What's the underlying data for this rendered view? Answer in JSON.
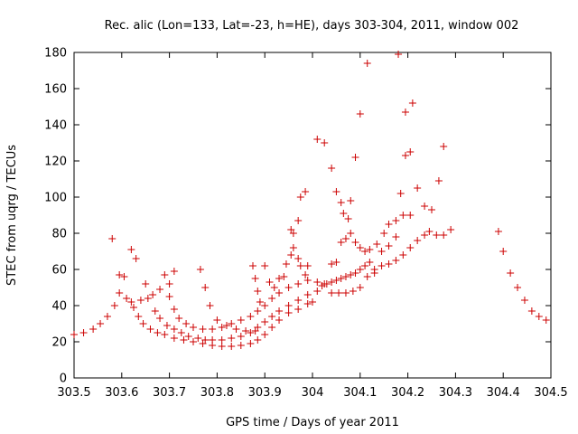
{
  "chart_data": {
    "type": "scatter",
    "title": "Rec. alic (Lon=133, Lat=-23, h=HE), days 303-304, 2011, window 002",
    "xlabel": "GPS time / Days of year 2011",
    "ylabel": "STEC from uqrg / TECUs",
    "xlim": [
      303.5,
      304.5
    ],
    "ylim": [
      0,
      180
    ],
    "xticks": [
      "303.5",
      "303.6",
      "303.7",
      "303.8",
      "303.9",
      "304",
      "304.1",
      "304.2",
      "304.3",
      "304.4",
      "304.5"
    ],
    "yticks": [
      "0",
      "20",
      "40",
      "60",
      "80",
      "100",
      "120",
      "140",
      "160",
      "180"
    ],
    "grid": false,
    "marker": "+",
    "color": "#cc0000",
    "points": [
      [
        303.5,
        24
      ],
      [
        303.52,
        25
      ],
      [
        303.54,
        27
      ],
      [
        303.555,
        30
      ],
      [
        303.57,
        34
      ],
      [
        303.585,
        40
      ],
      [
        303.58,
        77
      ],
      [
        303.595,
        57
      ],
      [
        303.595,
        47
      ],
      [
        303.605,
        56
      ],
      [
        303.61,
        44
      ],
      [
        303.62,
        42
      ],
      [
        303.625,
        39
      ],
      [
        303.635,
        34
      ],
      [
        303.645,
        30
      ],
      [
        303.66,
        27
      ],
      [
        303.675,
        25
      ],
      [
        303.69,
        24
      ],
      [
        303.71,
        22
      ],
      [
        303.73,
        21
      ],
      [
        303.75,
        20
      ],
      [
        303.77,
        19
      ],
      [
        303.79,
        18
      ],
      [
        303.81,
        17.5
      ],
      [
        303.83,
        17.5
      ],
      [
        303.85,
        18
      ],
      [
        303.87,
        19
      ],
      [
        303.885,
        21
      ],
      [
        303.9,
        24
      ],
      [
        303.915,
        28
      ],
      [
        303.93,
        32
      ],
      [
        303.95,
        36
      ],
      [
        303.97,
        38
      ],
      [
        303.99,
        41
      ],
      [
        303.62,
        71
      ],
      [
        303.63,
        66
      ],
      [
        303.64,
        43
      ],
      [
        303.655,
        44
      ],
      [
        303.665,
        46
      ],
      [
        303.68,
        49
      ],
      [
        303.69,
        57
      ],
      [
        303.7,
        52
      ],
      [
        303.7,
        45
      ],
      [
        303.71,
        38
      ],
      [
        303.72,
        33
      ],
      [
        303.735,
        30
      ],
      [
        303.75,
        28
      ],
      [
        303.77,
        27
      ],
      [
        303.79,
        27
      ],
      [
        303.81,
        28
      ],
      [
        303.83,
        30
      ],
      [
        303.85,
        32
      ],
      [
        303.87,
        34
      ],
      [
        303.885,
        37
      ],
      [
        303.9,
        40
      ],
      [
        303.915,
        44
      ],
      [
        303.93,
        47
      ],
      [
        303.95,
        50
      ],
      [
        303.97,
        52
      ],
      [
        303.99,
        54
      ],
      [
        303.65,
        52
      ],
      [
        303.67,
        37
      ],
      [
        303.68,
        33
      ],
      [
        303.695,
        29
      ],
      [
        303.71,
        27
      ],
      [
        303.725,
        25
      ],
      [
        303.74,
        23
      ],
      [
        303.76,
        22
      ],
      [
        303.775,
        21
      ],
      [
        303.79,
        21
      ],
      [
        303.81,
        21
      ],
      [
        303.83,
        22
      ],
      [
        303.85,
        23
      ],
      [
        303.87,
        25
      ],
      [
        303.885,
        28
      ],
      [
        303.9,
        31
      ],
      [
        303.915,
        34
      ],
      [
        303.93,
        37
      ],
      [
        303.95,
        40
      ],
      [
        303.97,
        43
      ],
      [
        303.99,
        46
      ],
      [
        303.71,
        59
      ],
      [
        303.765,
        60
      ],
      [
        303.775,
        50
      ],
      [
        303.785,
        40
      ],
      [
        303.8,
        32
      ],
      [
        303.82,
        29
      ],
      [
        303.84,
        27
      ],
      [
        303.86,
        26
      ],
      [
        303.88,
        26
      ],
      [
        303.875,
        62
      ],
      [
        303.88,
        55
      ],
      [
        303.885,
        48
      ],
      [
        303.89,
        42
      ],
      [
        303.9,
        62
      ],
      [
        303.91,
        53
      ],
      [
        303.92,
        50
      ],
      [
        303.93,
        55
      ],
      [
        303.94,
        56
      ],
      [
        303.945,
        63
      ],
      [
        303.955,
        68
      ],
      [
        303.96,
        72
      ],
      [
        303.97,
        66
      ],
      [
        303.975,
        62
      ],
      [
        303.985,
        57
      ],
      [
        303.955,
        82
      ],
      [
        303.96,
        80
      ],
      [
        303.97,
        87
      ],
      [
        303.975,
        100
      ],
      [
        303.985,
        103
      ],
      [
        303.99,
        62
      ],
      [
        304.0,
        42
      ],
      [
        304.01,
        48
      ],
      [
        304.02,
        51
      ],
      [
        304.03,
        52
      ],
      [
        304.04,
        53
      ],
      [
        304.05,
        54
      ],
      [
        304.06,
        55
      ],
      [
        304.07,
        56
      ],
      [
        304.08,
        57
      ],
      [
        304.09,
        58
      ],
      [
        304.1,
        60
      ],
      [
        304.11,
        62
      ],
      [
        304.12,
        64
      ],
      [
        304.01,
        132
      ],
      [
        304.025,
        130
      ],
      [
        304.04,
        116
      ],
      [
        304.05,
        103
      ],
      [
        304.06,
        97
      ],
      [
        304.065,
        91
      ],
      [
        304.075,
        88
      ],
      [
        304.08,
        98
      ],
      [
        304.09,
        122
      ],
      [
        304.1,
        146
      ],
      [
        304.115,
        174
      ],
      [
        304.13,
        60
      ],
      [
        304.145,
        62
      ],
      [
        304.16,
        63
      ],
      [
        304.175,
        65
      ],
      [
        304.19,
        68
      ],
      [
        304.205,
        72
      ],
      [
        304.22,
        76
      ],
      [
        304.235,
        79
      ],
      [
        304.245,
        81
      ],
      [
        304.26,
        79
      ],
      [
        304.275,
        79
      ],
      [
        304.29,
        82
      ],
      [
        304.01,
        53
      ],
      [
        304.025,
        52
      ],
      [
        304.04,
        63
      ],
      [
        304.05,
        64
      ],
      [
        304.06,
        75
      ],
      [
        304.07,
        77
      ],
      [
        304.08,
        80
      ],
      [
        304.09,
        75
      ],
      [
        304.1,
        72
      ],
      [
        304.11,
        70
      ],
      [
        304.12,
        71
      ],
      [
        304.135,
        74
      ],
      [
        304.15,
        80
      ],
      [
        304.16,
        85
      ],
      [
        304.175,
        87
      ],
      [
        304.19,
        90
      ],
      [
        304.205,
        90
      ],
      [
        304.22,
        105
      ],
      [
        304.235,
        95
      ],
      [
        304.25,
        93
      ],
      [
        304.265,
        109
      ],
      [
        304.275,
        128
      ],
      [
        304.04,
        47
      ],
      [
        304.055,
        47
      ],
      [
        304.07,
        47
      ],
      [
        304.085,
        48
      ],
      [
        304.1,
        50
      ],
      [
        304.115,
        56
      ],
      [
        304.13,
        58
      ],
      [
        304.145,
        70
      ],
      [
        304.16,
        73
      ],
      [
        304.175,
        78
      ],
      [
        304.185,
        102
      ],
      [
        304.195,
        123
      ],
      [
        304.205,
        125
      ],
      [
        304.195,
        147
      ],
      [
        304.21,
        152
      ],
      [
        304.18,
        179
      ],
      [
        304.39,
        81
      ],
      [
        304.4,
        70
      ],
      [
        304.415,
        58
      ],
      [
        304.43,
        50
      ],
      [
        304.445,
        43
      ],
      [
        304.46,
        37
      ],
      [
        304.475,
        34
      ],
      [
        304.49,
        32
      ]
    ]
  }
}
